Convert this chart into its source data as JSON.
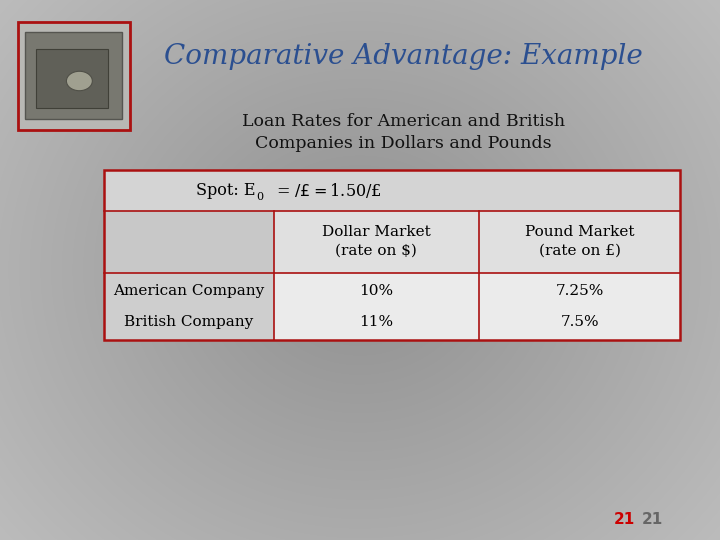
{
  "title": "Comparative Advantage: Example",
  "subtitle_line1": "Loan Rates for American and British",
  "subtitle_line2": "Companies in Dollars and Pounds",
  "title_color": "#2B4F90",
  "subtitle_color": "#111111",
  "table_border_color": "#AA1111",
  "spot_text_pre": "Spot: E",
  "spot_subscript": "0",
  "spot_text_post": " = $/£   = $1.50/£",
  "col_headers": [
    "Dollar Market\n(rate on $)",
    "Pound Market\n(rate on £)"
  ],
  "row_labels": [
    "American Company",
    "British Company"
  ],
  "data": [
    [
      "10%",
      "7.25%"
    ],
    [
      "11%",
      "7.5%"
    ]
  ],
  "page_number_red": "21",
  "page_number_gray": "21",
  "bg_left": "#989898",
  "bg_right": "#D8D8D8",
  "bg_center_light": "#E2E2E2",
  "table_spot_bg": "#D8D8D8",
  "table_header_col0_bg": "#C8C8C8",
  "table_header_col12_bg": "#E0E0E0",
  "table_data_col0_bg": "#C8C8C8",
  "table_data_col12_bg": "#ECECEC",
  "safe_border_color": "#AA1111",
  "safe_fill": "#C0C0C0"
}
